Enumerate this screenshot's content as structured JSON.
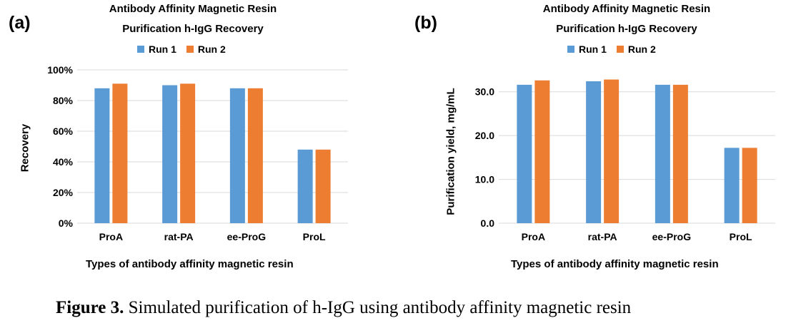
{
  "caption": {
    "label": "Figure 3.",
    "text": " Simulated purification of h-IgG using antibody affinity magnetic resin"
  },
  "colors": {
    "run1": "#5B9BD5",
    "run2": "#ED7D31",
    "grid": "#D9D9D9"
  },
  "chart_data": [
    {
      "panel_label": "(a)",
      "type": "bar",
      "title_line1": "Antibody Affinity Magnetic Resin",
      "title_line2": "Purification h-IgG Recovery",
      "xlabel": "Types of antibody affinity magnetic resin",
      "ylabel": "Recovery",
      "categories": [
        "ProA",
        "rat-PA",
        "ee-ProG",
        "ProL"
      ],
      "series": [
        {
          "name": "Run 1",
          "values": [
            0.88,
            0.9,
            0.88,
            0.48
          ]
        },
        {
          "name": "Run 2",
          "values": [
            0.91,
            0.91,
            0.88,
            0.48
          ]
        }
      ],
      "ylim": [
        0,
        1.0
      ],
      "yticks": [
        0,
        0.2,
        0.4,
        0.6,
        0.8,
        1.0
      ],
      "ytick_labels": [
        "0%",
        "20%",
        "40%",
        "60%",
        "80%",
        "100%"
      ],
      "grid": true,
      "legend": "top-center"
    },
    {
      "panel_label": "(b)",
      "type": "bar",
      "title_line1": "Antibody Affinity Magnetic Resin",
      "title_line2": "Purification h-IgG Recovery",
      "xlabel": "Types of antibody affinity magnetic resin",
      "ylabel": "Purification yield, mg/mL",
      "categories": [
        "ProA",
        "rat-PA",
        "ee-ProG",
        "ProL"
      ],
      "series": [
        {
          "name": "Run 1",
          "values": [
            31.6,
            32.4,
            31.6,
            17.2
          ]
        },
        {
          "name": "Run 2",
          "values": [
            32.6,
            32.8,
            31.6,
            17.2
          ]
        }
      ],
      "ylim": [
        0,
        35
      ],
      "yticks": [
        0,
        10,
        20,
        30
      ],
      "ytick_labels": [
        "0.0",
        "10.0",
        "20.0",
        "30.0"
      ],
      "grid": true,
      "legend": "top-center"
    }
  ]
}
